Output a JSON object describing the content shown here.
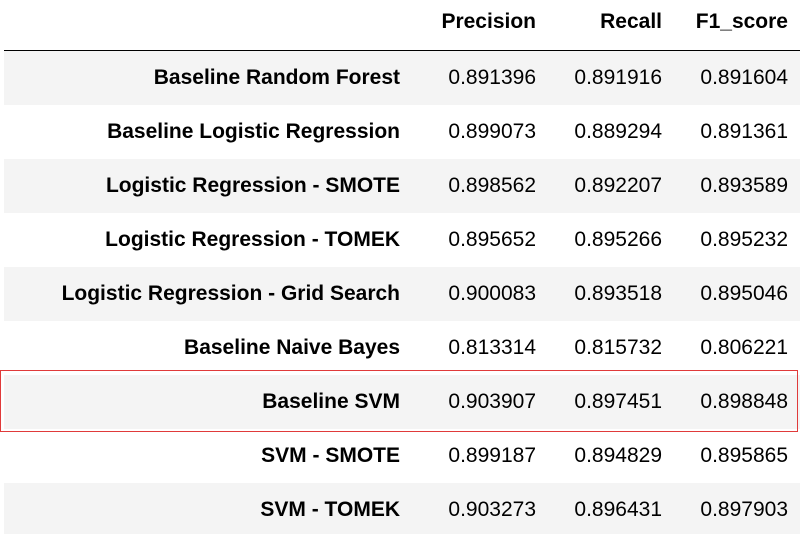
{
  "table": {
    "headers": [
      "",
      "Precision",
      "Recall",
      "F1_score"
    ],
    "rows": [
      {
        "model": "Baseline Random Forest",
        "precision": "0.891396",
        "recall": "0.891916",
        "f1": "0.891604"
      },
      {
        "model": "Baseline Logistic Regression",
        "precision": "0.899073",
        "recall": "0.889294",
        "f1": "0.891361"
      },
      {
        "model": "Logistic Regression - SMOTE",
        "precision": "0.898562",
        "recall": "0.892207",
        "f1": "0.893589"
      },
      {
        "model": "Logistic Regression - TOMEK",
        "precision": "0.895652",
        "recall": "0.895266",
        "f1": "0.895232"
      },
      {
        "model": "Logistic Regression - Grid Search",
        "precision": "0.900083",
        "recall": "0.893518",
        "f1": "0.895046"
      },
      {
        "model": "Baseline Naive Bayes",
        "precision": "0.813314",
        "recall": "0.815732",
        "f1": "0.806221"
      },
      {
        "model": "Baseline SVM",
        "precision": "0.903907",
        "recall": "0.897451",
        "f1": "0.898848"
      },
      {
        "model": "SVM - SMOTE",
        "precision": "0.899187",
        "recall": "0.894829",
        "f1": "0.895865"
      },
      {
        "model": "SVM - TOMEK",
        "precision": "0.903273",
        "recall": "0.896431",
        "f1": "0.897903"
      }
    ],
    "highlighted_row": "Baseline SVM",
    "highlight_color": "#e03a3a"
  }
}
